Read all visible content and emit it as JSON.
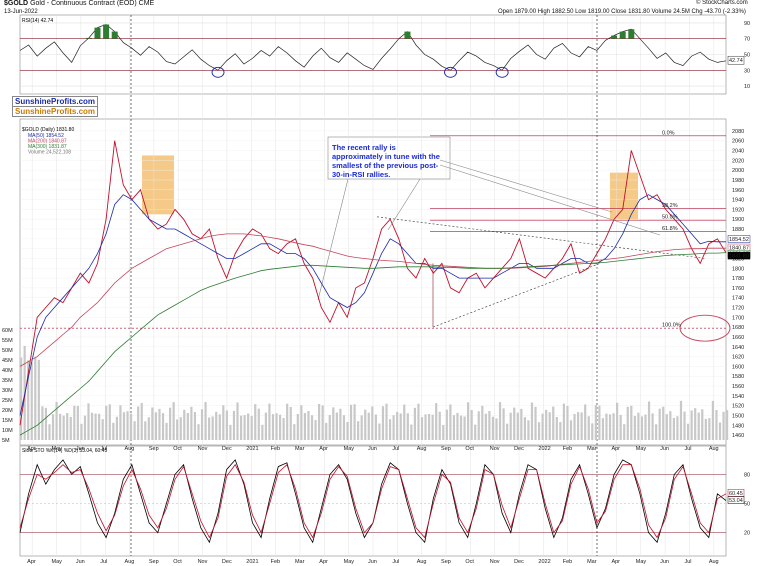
{
  "header": {
    "symbol": "$GOLD",
    "description": "Gold - Continuous Contract (EOD)",
    "exchange": "CME",
    "date": "13-Jun-2022",
    "open_text": "Open 1879.00",
    "high_text": "High 1882.50",
    "low_text": "Low 1819.00",
    "close_text": "Close 1831.80",
    "volume_text": "Volume 24.5M",
    "chg_text": "Chg -43.70 (-2.33%)",
    "credit": "© StockCharts.com"
  },
  "brand": {
    "line1": "SunshineProfits.com",
    "line2": "SunshineProfits.com"
  },
  "annotation": {
    "text": "The recent rally is approximately in tune with the smallest of the previous post-30-in-RSI rallies."
  },
  "colors": {
    "price_up": "#000000",
    "price_down": "#c0102a",
    "ma50": "#1a2aa8",
    "ma200": "#c4455a",
    "ma300": "#2e7d32",
    "volume": "#c8c8c8",
    "fib": "#b0183a",
    "rsi_fill": "#2e7d32",
    "highlight": "#f2b860",
    "callout_text": "#1b2bd6"
  },
  "chart_data": [
    {
      "type": "line",
      "title": "RSI(14) 42.74",
      "y_ticks": [
        "90",
        "70",
        "50",
        "30",
        "10"
      ],
      "ylim": [
        0,
        100
      ],
      "last_value_label": "42.74",
      "series": [
        {
          "name": "RSI(14)",
          "values": [
            55,
            62,
            48,
            58,
            66,
            52,
            40,
            61,
            71,
            84,
            88,
            79,
            65,
            58,
            49,
            60,
            53,
            41,
            38,
            47,
            56,
            44,
            36,
            30,
            42,
            51,
            38,
            45,
            55,
            48,
            60,
            52,
            42,
            34,
            48,
            58,
            46,
            40,
            52,
            44,
            36,
            31,
            45,
            57,
            70,
            79,
            62,
            50,
            44,
            35,
            30,
            42,
            53,
            48,
            40,
            36,
            30,
            45,
            54,
            62,
            50,
            44,
            58,
            64,
            52,
            47,
            60,
            55,
            68,
            74,
            79,
            82,
            70,
            58,
            45,
            52,
            40,
            36,
            48,
            53,
            44,
            40,
            42
          ]
        }
      ]
    },
    {
      "type": "line",
      "title": "$GOLD (Daily) 1831.80",
      "legend": [
        "MA(50) 1854.52",
        "MA(200) 1840.87",
        "MA(300) 1831.87",
        "Volume 24,522,108"
      ],
      "y_ticks": [
        "2080",
        "2060",
        "2040",
        "2020",
        "2000",
        "1980",
        "1960",
        "1940",
        "1920",
        "1900",
        "1880",
        "1860",
        "1840",
        "1820",
        "1800",
        "1780",
        "1760",
        "1740",
        "1720",
        "1700",
        "1680",
        "1660",
        "1640",
        "1620",
        "1600",
        "1580",
        "1560",
        "1540",
        "1520",
        "1500",
        "1480",
        "1460"
      ],
      "ylim": [
        1450,
        2090
      ],
      "x_ticks": [
        "Apr",
        "May",
        "Jun",
        "Jul",
        "Aug",
        "Sep",
        "Oct",
        "Nov",
        "Dec",
        "2021",
        "Feb",
        "Mar",
        "Apr",
        "May",
        "Jun",
        "Jul",
        "Aug",
        "Sep",
        "Oct",
        "Nov",
        "Dec",
        "2022",
        "Feb",
        "Mar",
        "Apr",
        "May",
        "Jun",
        "Jul",
        "Aug"
      ],
      "volume_ticks": [
        "60M",
        "55M",
        "50M",
        "45M",
        "40M",
        "35M",
        "30M",
        "25M",
        "20M",
        "15M",
        "10M",
        "5M"
      ],
      "fib_labels": [
        "0.0%",
        "38.2%",
        "50.0%",
        "61.8%",
        "100.0%"
      ],
      "price_labels": [
        "1854.52",
        "1840.87",
        "1831.87",
        "1831.80"
      ],
      "series": [
        {
          "name": "Price",
          "values": [
            1480,
            1590,
            1700,
            1720,
            1740,
            1730,
            1760,
            1790,
            1770,
            1810,
            1900,
            2060,
            1970,
            1940,
            1960,
            1900,
            1880,
            1890,
            1920,
            1900,
            1870,
            1860,
            1880,
            1820,
            1780,
            1830,
            1860,
            1880,
            1870,
            1840,
            1830,
            1850,
            1860,
            1810,
            1780,
            1720,
            1690,
            1730,
            1700,
            1760,
            1770,
            1820,
            1880,
            1900,
            1860,
            1800,
            1780,
            1820,
            1790,
            1810,
            1760,
            1750,
            1780,
            1790,
            1760,
            1780,
            1800,
            1820,
            1860,
            1800,
            1790,
            1780,
            1800,
            1820,
            1850,
            1790,
            1800,
            1830,
            1860,
            1900,
            1920,
            2040,
            1990,
            1940,
            1950,
            1920,
            1900,
            1880,
            1840,
            1810,
            1850,
            1860,
            1832
          ]
        },
        {
          "name": "MA(50)",
          "values": [
            1500,
            1580,
            1660,
            1700,
            1720,
            1740,
            1760,
            1780,
            1800,
            1830,
            1870,
            1930,
            1950,
            1940,
            1920,
            1900,
            1890,
            1880,
            1880,
            1870,
            1860,
            1850,
            1840,
            1830,
            1820,
            1820,
            1830,
            1840,
            1850,
            1850,
            1840,
            1830,
            1830,
            1820,
            1800,
            1770,
            1740,
            1730,
            1720,
            1730,
            1750,
            1790,
            1830,
            1860,
            1850,
            1830,
            1810,
            1810,
            1800,
            1800,
            1790,
            1780,
            1780,
            1780,
            1780,
            1780,
            1790,
            1800,
            1810,
            1810,
            1800,
            1800,
            1800,
            1810,
            1820,
            1820,
            1810,
            1810,
            1820,
            1840,
            1870,
            1910,
            1940,
            1950,
            1940,
            1930,
            1910,
            1890,
            1870,
            1850,
            1855,
            1854,
            1854
          ]
        },
        {
          "name": "MA(200)",
          "values": [
            1600,
            1610,
            1620,
            1635,
            1650,
            1665,
            1680,
            1700,
            1715,
            1730,
            1750,
            1770,
            1785,
            1800,
            1810,
            1820,
            1830,
            1840,
            1845,
            1850,
            1855,
            1860,
            1865,
            1868,
            1870,
            1870,
            1870,
            1868,
            1866,
            1863,
            1860,
            1856,
            1852,
            1848,
            1845,
            1840,
            1835,
            1830,
            1825,
            1822,
            1820,
            1818,
            1816,
            1815,
            1814,
            1812,
            1810,
            1808,
            1806,
            1805,
            1804,
            1803,
            1802,
            1801,
            1800,
            1800,
            1800,
            1800,
            1801,
            1802,
            1803,
            1804,
            1806,
            1808,
            1810,
            1812,
            1814,
            1816,
            1818,
            1820,
            1822,
            1825,
            1828,
            1831,
            1834,
            1836,
            1838,
            1839,
            1840,
            1840,
            1841,
            1841,
            1841
          ]
        },
        {
          "name": "MA(300)",
          "values": [
            1460,
            1470,
            1480,
            1495,
            1510,
            1525,
            1540,
            1555,
            1570,
            1590,
            1610,
            1630,
            1645,
            1660,
            1675,
            1690,
            1705,
            1715,
            1725,
            1735,
            1745,
            1755,
            1762,
            1768,
            1774,
            1780,
            1785,
            1790,
            1795,
            1798,
            1800,
            1802,
            1804,
            1806,
            1806,
            1805,
            1804,
            1803,
            1802,
            1801,
            1800,
            1800,
            1801,
            1802,
            1803,
            1803,
            1803,
            1803,
            1803,
            1802,
            1802,
            1801,
            1800,
            1800,
            1800,
            1800,
            1800,
            1801,
            1802,
            1803,
            1804,
            1805,
            1806,
            1807,
            1808,
            1809,
            1810,
            1811,
            1812,
            1814,
            1816,
            1818,
            1820,
            1822,
            1824,
            1826,
            1827,
            1828,
            1829,
            1830,
            1831,
            1831,
            1832
          ]
        }
      ]
    },
    {
      "type": "line",
      "title": "Slow STO %K(14) %D(3) 53.04, 60.45",
      "y_ticks": [
        "80",
        "50",
        "20"
      ],
      "ylim": [
        0,
        100
      ],
      "last_value_labels": [
        "60.45",
        "53.04"
      ],
      "series": [
        {
          "name": "%K",
          "values": [
            20,
            60,
            90,
            70,
            85,
            95,
            80,
            88,
            60,
            30,
            15,
            40,
            75,
            90,
            60,
            30,
            20,
            50,
            80,
            90,
            55,
            25,
            10,
            40,
            85,
            95,
            70,
            30,
            15,
            55,
            88,
            92,
            60,
            25,
            10,
            45,
            80,
            90,
            75,
            40,
            15,
            30,
            70,
            92,
            85,
            50,
            20,
            10,
            55,
            85,
            70,
            30,
            15,
            50,
            90,
            80,
            40,
            20,
            60,
            90,
            85,
            45,
            15,
            35,
            75,
            90,
            60,
            25,
            45,
            80,
            95,
            90,
            60,
            20,
            10,
            40,
            80,
            90,
            55,
            25,
            15,
            60,
            53
          ]
        },
        {
          "name": "%D",
          "values": [
            25,
            55,
            80,
            75,
            82,
            90,
            82,
            85,
            65,
            40,
            22,
            38,
            68,
            85,
            65,
            38,
            25,
            45,
            75,
            88,
            60,
            32,
            15,
            35,
            78,
            90,
            72,
            38,
            20,
            50,
            82,
            90,
            65,
            30,
            15,
            40,
            75,
            88,
            78,
            45,
            20,
            30,
            65,
            88,
            85,
            55,
            25,
            15,
            50,
            80,
            72,
            35,
            20,
            45,
            85,
            80,
            48,
            25,
            55,
            85,
            85,
            50,
            20,
            32,
            70,
            88,
            65,
            30,
            42,
            75,
            90,
            90,
            65,
            28,
            15,
            35,
            75,
            88,
            60,
            30,
            20,
            55,
            60
          ]
        }
      ]
    }
  ]
}
